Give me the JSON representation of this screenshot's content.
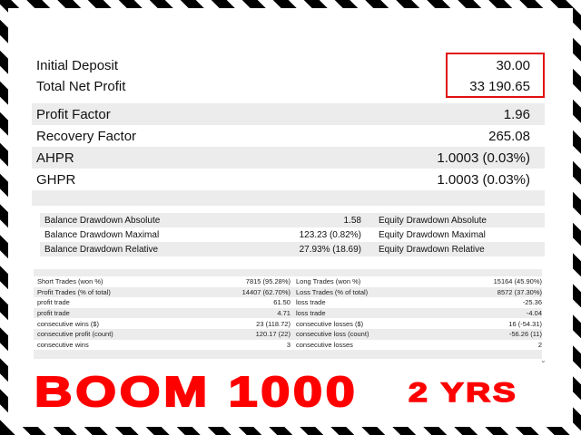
{
  "summary": [
    {
      "label": "Initial Deposit",
      "value": "30.00"
    },
    {
      "label": "Total Net Profit",
      "value": "33 190.65"
    },
    {
      "label": "Profit Factor",
      "value": "1.96"
    },
    {
      "label": "Recovery Factor",
      "value": "265.08"
    },
    {
      "label": "AHPR",
      "value": "1.0003 (0.03%)"
    },
    {
      "label": "GHPR",
      "value": "1.0003 (0.03%)"
    }
  ],
  "drawdown": [
    {
      "label": "Balance Drawdown Absolute",
      "value": "1.58",
      "label2": "Equity Drawdown Absolute"
    },
    {
      "label": "Balance Drawdown Maximal",
      "value": "123.23 (0.82%)",
      "label2": "Equity Drawdown Maximal"
    },
    {
      "label": "Balance Drawdown Relative",
      "value": "27.93% (18.69)",
      "label2": "Equity Drawdown Relative"
    }
  ],
  "trades": [
    {
      "k": "Short Trades (won %)",
      "v": "7815 (95.28%)",
      "k2": "Long Trades (won %)",
      "v2": "15164 (45.90%)"
    },
    {
      "k": "Profit Trades (% of total)",
      "v": "14407 (62.70%)",
      "k2": "Loss Trades (% of total)",
      "v2": "8572 (37.30%)"
    },
    {
      "k": "profit trade",
      "v": "61.50",
      "k2": "loss trade",
      "v2": "-25.36"
    },
    {
      "k": "profit trade",
      "v": "4.71",
      "k2": "loss trade",
      "v2": "-4.04"
    },
    {
      "k": "consecutive wins ($)",
      "v": "23 (118.72)",
      "k2": "consecutive losses ($)",
      "v2": "16 (-54.31)"
    },
    {
      "k": "consecutive profit (count)",
      "v": "120.17 (22)",
      "k2": "consecutive loss (count)",
      "v2": "-56.26 (11)"
    },
    {
      "k": "consecutive wins",
      "v": "3",
      "k2": "consecutive losses",
      "v2": "2"
    }
  ],
  "banner": {
    "main": "BOOM  1000",
    "sub": "2 YRS",
    "color": "#ff0000"
  },
  "highlight_color": "#e01010"
}
